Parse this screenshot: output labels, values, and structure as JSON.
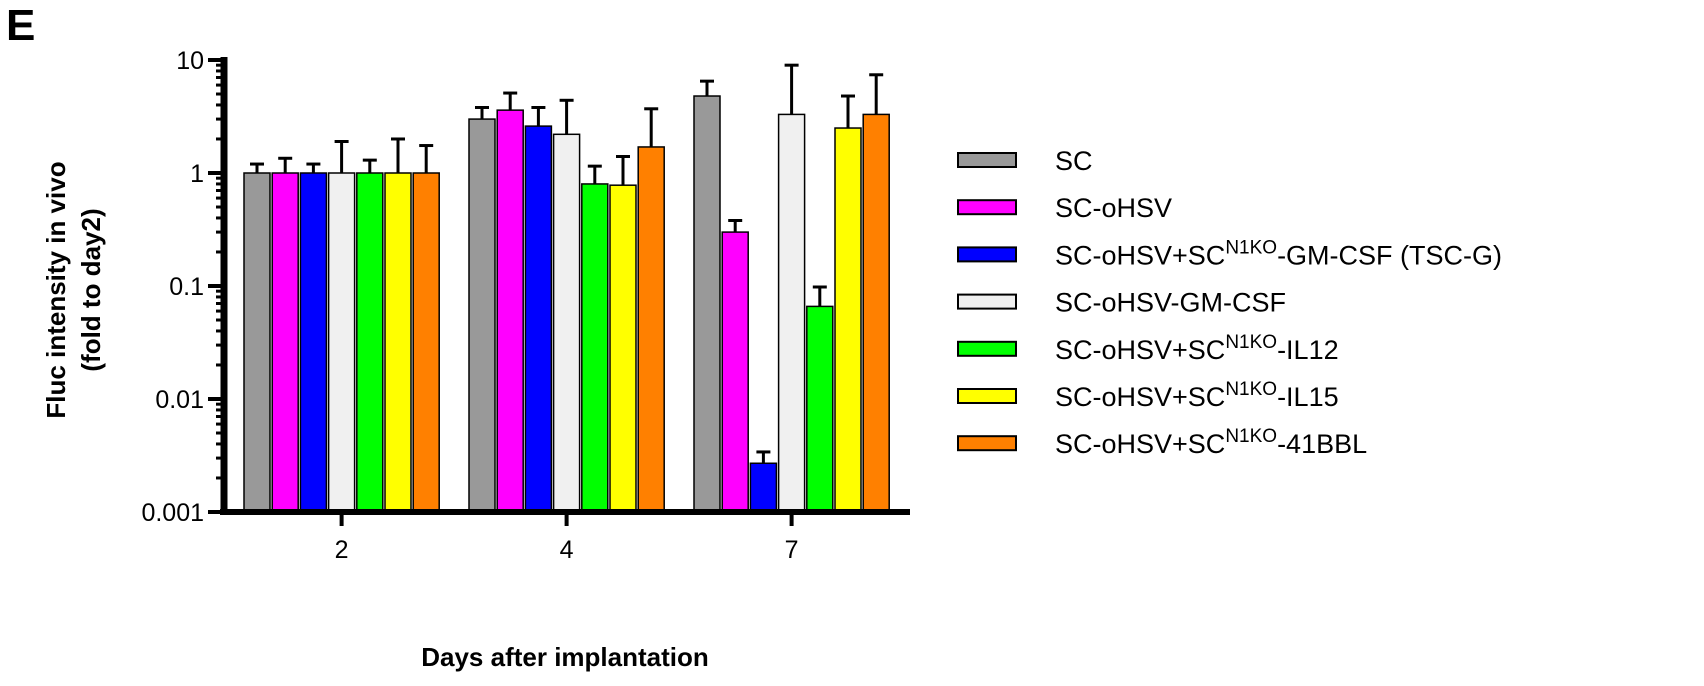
{
  "panel_label": "E",
  "chart_data": {
    "type": "bar",
    "y_scale": "log",
    "ylim": [
      0.001,
      10
    ],
    "y_ticks": [
      "10",
      "1",
      "0.1",
      "0.01",
      "0.001"
    ],
    "y_tick_values": [
      10,
      1,
      0.1,
      0.01,
      0.001
    ],
    "ylabel_line1": "Fluc intensity in vivo",
    "ylabel_line2": "(fold to day2)",
    "xlabel": "Days after implantation",
    "categories": [
      "2",
      "4",
      "7"
    ],
    "error_bars": "upper SD",
    "legend_position": "right",
    "series": [
      {
        "name": "SC",
        "name_base": "SC",
        "name_sup": "",
        "name_suffix": "",
        "color": "#999999",
        "values": [
          1.0,
          3.0,
          4.8
        ],
        "errors": [
          1.2,
          3.8,
          6.5
        ]
      },
      {
        "name": "SC-oHSV",
        "name_base": "SC-oHSV",
        "name_sup": "",
        "name_suffix": "",
        "color": "#ff00ff",
        "values": [
          1.0,
          3.6,
          0.3
        ],
        "errors": [
          1.35,
          5.1,
          0.38
        ]
      },
      {
        "name": "SC-oHSV+SCN1KO-GM-CSF (TSC-G)",
        "name_base": "SC-oHSV+SC",
        "name_sup": "N1KO",
        "name_suffix": "-GM-CSF (TSC-G)",
        "color": "#0000ff",
        "values": [
          1.0,
          2.6,
          0.0027
        ],
        "errors": [
          1.2,
          3.8,
          0.0034
        ]
      },
      {
        "name": "SC-oHSV-GM-CSF",
        "name_base": "SC-oHSV-GM-CSF",
        "name_sup": "",
        "name_suffix": "",
        "color": "#f0f0f0",
        "values": [
          1.0,
          2.2,
          3.3
        ],
        "errors": [
          1.9,
          4.4,
          9.0
        ]
      },
      {
        "name": "SC-oHSV+SCN1KO-IL12",
        "name_base": "SC-oHSV+SC",
        "name_sup": "N1KO",
        "name_suffix": "-IL12",
        "color": "#00ff00",
        "values": [
          1.0,
          0.8,
          0.066
        ],
        "errors": [
          1.3,
          1.15,
          0.098
        ]
      },
      {
        "name": "SC-oHSV+SCN1KO-IL15",
        "name_base": "SC-oHSV+SC",
        "name_sup": "N1KO",
        "name_suffix": "-IL15",
        "color": "#ffff00",
        "values": [
          1.0,
          0.78,
          2.5
        ],
        "errors": [
          2.0,
          1.4,
          4.8
        ]
      },
      {
        "name": "SC-oHSV+SCN1KO-41BBL",
        "name_base": "SC-oHSV+SC",
        "name_sup": "N1KO",
        "name_suffix": "-41BBL",
        "color": "#ff8000",
        "values": [
          1.0,
          1.7,
          3.3
        ],
        "errors": [
          1.75,
          3.7,
          7.4
        ]
      }
    ]
  }
}
